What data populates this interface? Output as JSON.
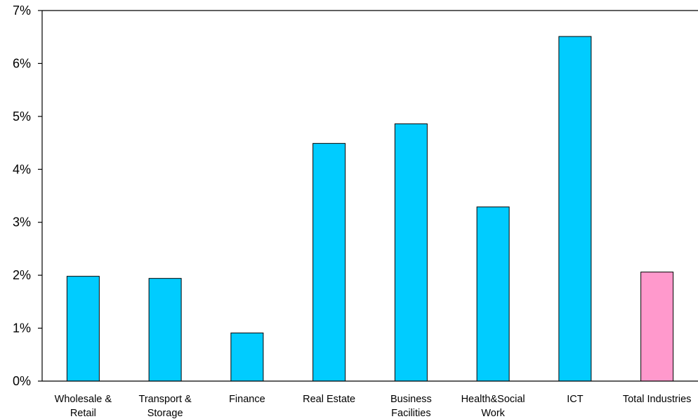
{
  "chart_data": {
    "type": "bar",
    "title": "",
    "xlabel": "",
    "ylabel": "",
    "ylim": [
      0,
      7
    ],
    "y_ticks": [
      "0%",
      "1%",
      "2%",
      "3%",
      "4%",
      "5%",
      "6%",
      "7%"
    ],
    "grid": false,
    "legend": "none",
    "categories": [
      [
        "Wholesale &",
        "Retail"
      ],
      [
        "Transport &",
        "Storage"
      ],
      [
        "Finance"
      ],
      [
        "Real Estate"
      ],
      [
        "Business",
        "Facilities"
      ],
      [
        "Health&Social",
        "Work"
      ],
      [
        "ICT"
      ],
      [
        "Total Industries"
      ]
    ],
    "values": [
      1.98,
      1.94,
      0.91,
      4.49,
      4.86,
      3.29,
      6.51,
      2.06
    ],
    "bar_colors": [
      "#00ccff",
      "#00ccff",
      "#00ccff",
      "#00ccff",
      "#00ccff",
      "#00ccff",
      "#00ccff",
      "#ff99cc"
    ]
  }
}
